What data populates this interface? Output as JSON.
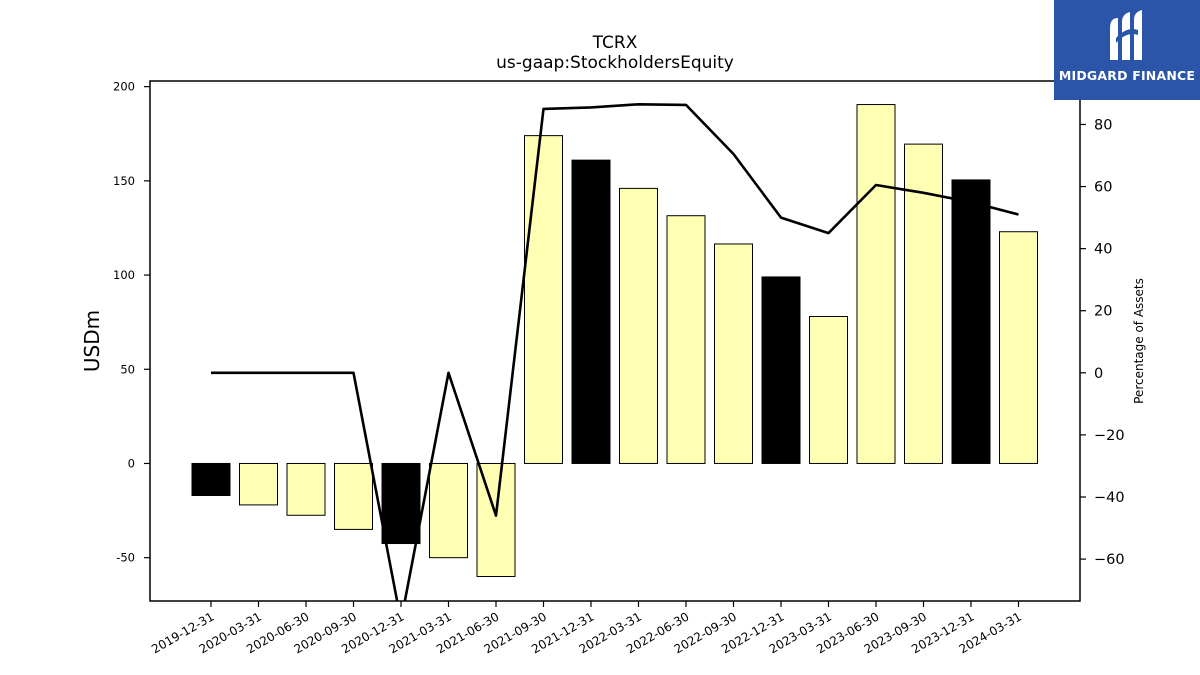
{
  "chart_data": {
    "type": "bar",
    "title": "TCRX",
    "subtitle": "us-gaap:StockholdersEquity",
    "ylabel": "USDm",
    "y2label": "Percentage of Assets",
    "ylim": [
      -73,
      203
    ],
    "y2lim": [
      -73.5,
      94
    ],
    "yticks": [
      -50,
      0,
      50,
      100,
      150,
      200
    ],
    "y2ticks": [
      -60,
      -40,
      -20,
      0,
      20,
      40,
      60,
      80
    ],
    "categories": [
      "2019-12-31",
      "2020-03-31",
      "2020-06-30",
      "2020-09-30",
      "2020-12-31",
      "2021-03-31",
      "2021-06-30",
      "2021-09-30",
      "2021-12-31",
      "2022-03-31",
      "2022-06-30",
      "2022-09-30",
      "2022-12-31",
      "2023-03-31",
      "2023-06-30",
      "2023-09-30",
      "2023-12-31",
      "2024-03-31"
    ],
    "series": [
      {
        "type": "bar",
        "axis": "left",
        "values": [
          -17,
          -22,
          -27.5,
          -35,
          -42.5,
          -50,
          -60,
          174,
          161,
          146,
          131.5,
          116.5,
          99,
          78,
          190.5,
          169.5,
          150.5,
          123
        ],
        "colors": [
          "#000000",
          "#ffffb3",
          "#ffffb3",
          "#ffffb3",
          "#000000",
          "#ffffb3",
          "#ffffb3",
          "#ffffb3",
          "#000000",
          "#ffffb3",
          "#ffffb3",
          "#ffffb3",
          "#000000",
          "#ffffb3",
          "#ffffb3",
          "#ffffb3",
          "#000000",
          "#ffffb3"
        ]
      },
      {
        "type": "line",
        "axis": "right",
        "color": "#000000",
        "values": [
          0,
          0,
          0,
          0,
          -80,
          0,
          -46,
          85,
          85.5,
          86.5,
          86.3,
          70.5,
          50,
          45,
          60.5,
          58,
          55,
          51
        ]
      }
    ],
    "grid": false
  },
  "logo": {
    "text": "MIDGARD FINANCE",
    "background": "#2b55a8"
  }
}
